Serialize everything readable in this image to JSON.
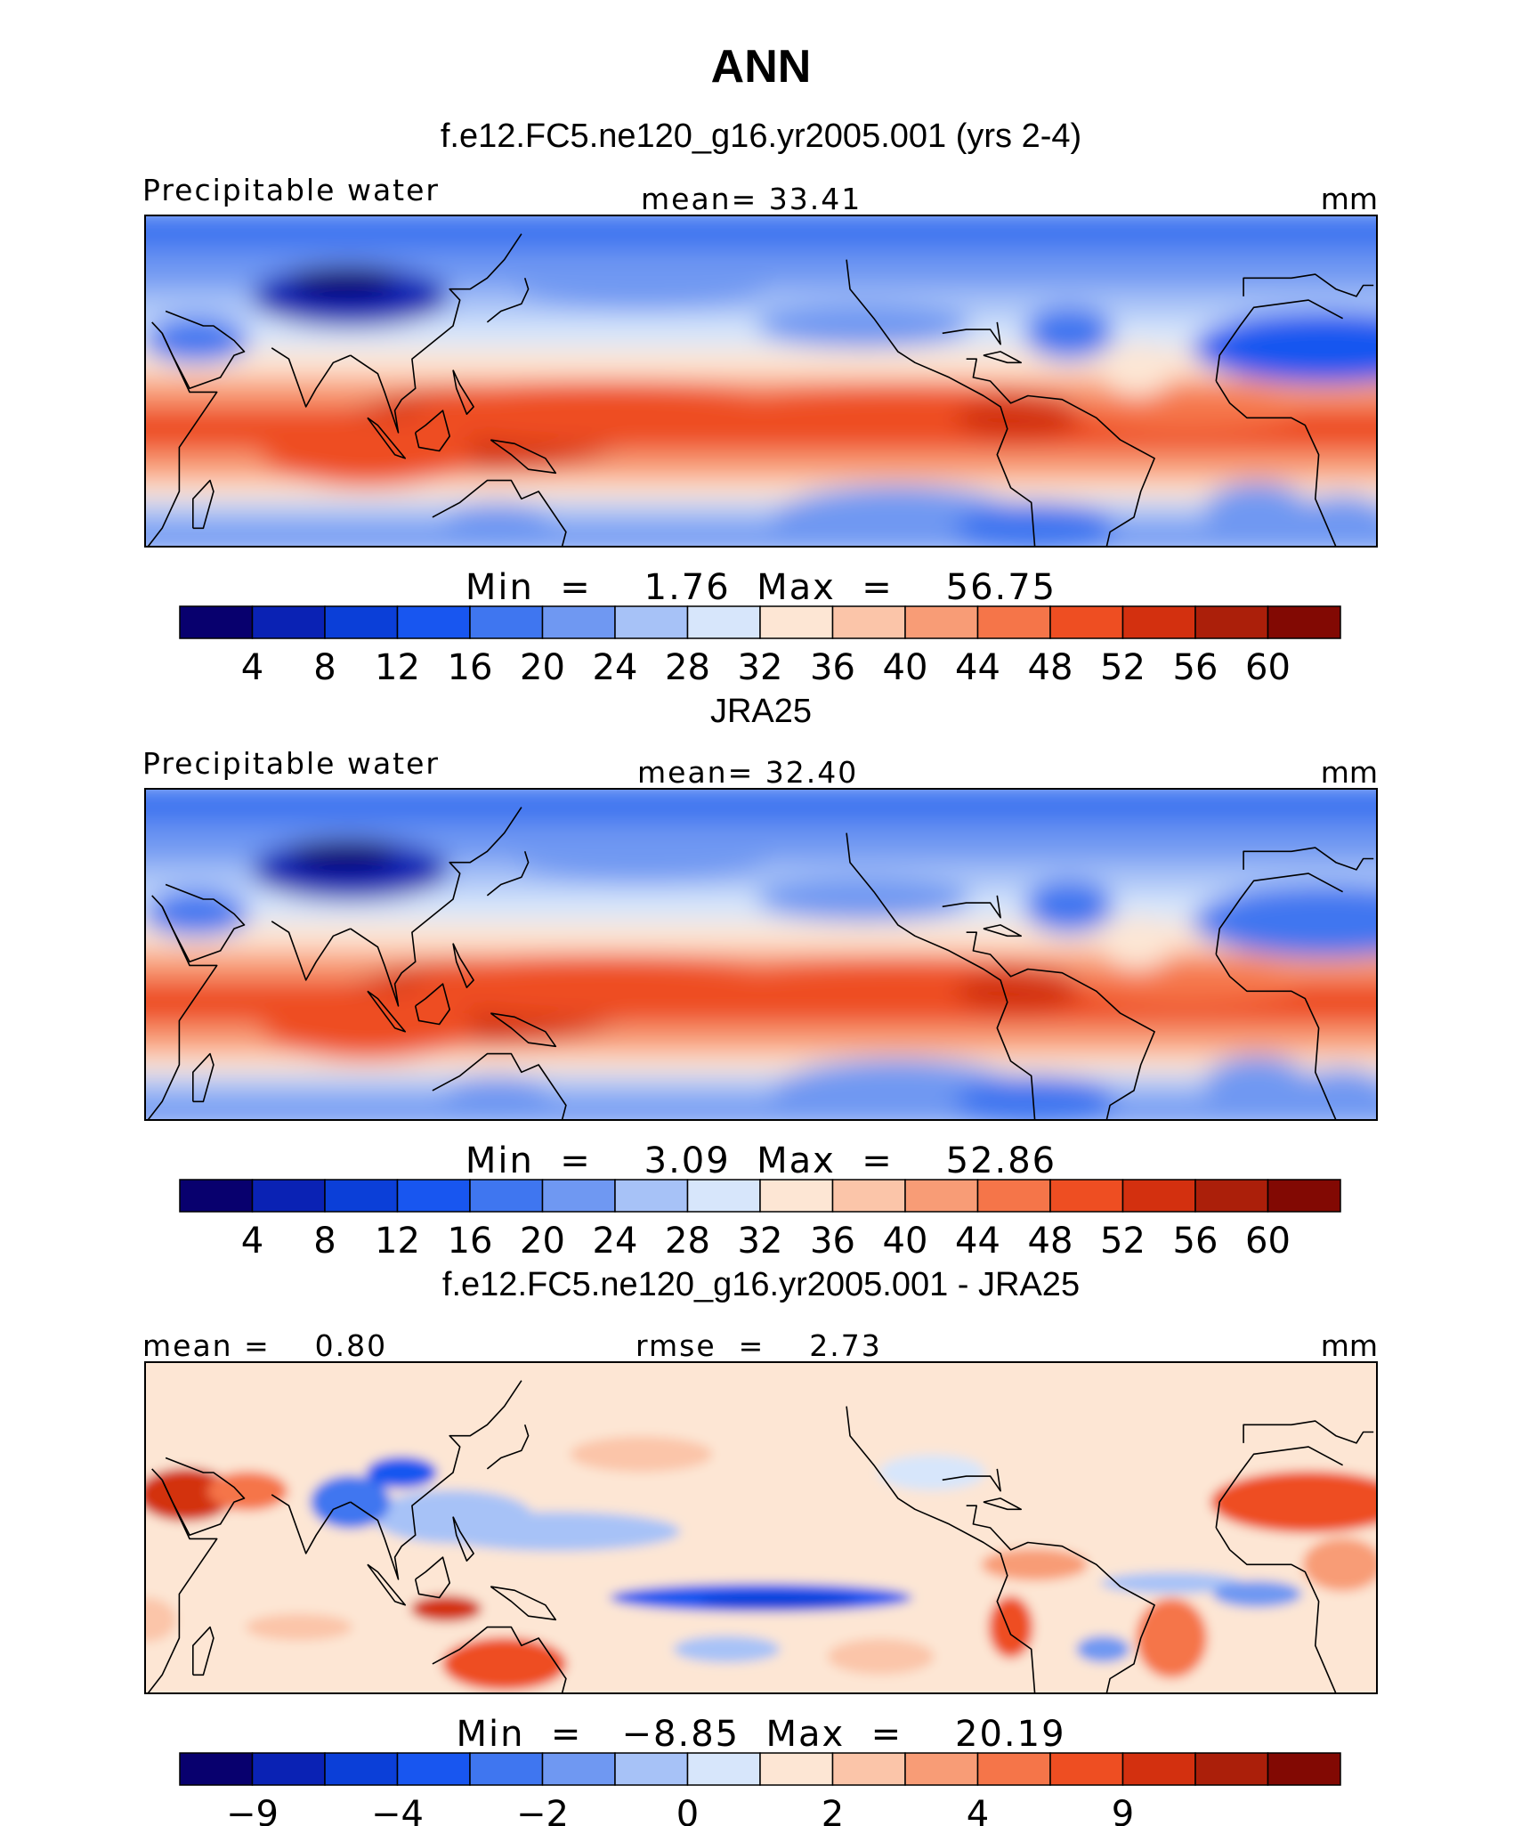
{
  "figure": {
    "title": "ANN"
  },
  "colors": {
    "levels_palette": [
      "#08006e",
      "#0a22b4",
      "#0b3fd8",
      "#1856f0",
      "#3f76f0",
      "#6f98f2",
      "#a7c2f7",
      "#d7e6fb",
      "#fde6d4",
      "#fbc5a9",
      "#f89c76",
      "#f57549",
      "#ee4e22",
      "#d3300f",
      "#ab1f0a",
      "#820903"
    ]
  },
  "chart_data": [
    {
      "type": "heatmap",
      "panel_title": "f.e12.FC5.ne120_g16.yr2005.001 (yrs 2-4)",
      "variable_label": "Precipitable water",
      "stat_left": "",
      "stat_center": "mean=   33.41",
      "units": "mm",
      "minmax": "Min  =    1.76  Max  =    56.75",
      "min": 1.76,
      "max": 56.75,
      "mean": 33.41,
      "colorbar_ticks": [
        "4",
        "8",
        "12",
        "16",
        "20",
        "24",
        "28",
        "32",
        "36",
        "40",
        "44",
        "48",
        "52",
        "56",
        "60"
      ],
      "colorbar_levels": [
        4,
        8,
        12,
        16,
        20,
        24,
        28,
        32,
        36,
        40,
        44,
        48,
        52,
        56,
        60
      ],
      "extent": {
        "lon_min": 30,
        "lon_max": 390,
        "lat_min": -30,
        "lat_max": 60
      }
    },
    {
      "type": "heatmap",
      "panel_title": "JRA25",
      "variable_label": "Precipitable water",
      "stat_left": "",
      "stat_center": "mean=   32.40",
      "units": "mm",
      "minmax": "Min  =    3.09  Max  =    52.86",
      "min": 3.09,
      "max": 52.86,
      "mean": 32.4,
      "colorbar_ticks": [
        "4",
        "8",
        "12",
        "16",
        "20",
        "24",
        "28",
        "32",
        "36",
        "40",
        "44",
        "48",
        "52",
        "56",
        "60"
      ],
      "colorbar_levels": [
        4,
        8,
        12,
        16,
        20,
        24,
        28,
        32,
        36,
        40,
        44,
        48,
        52,
        56,
        60
      ],
      "extent": {
        "lon_min": 30,
        "lon_max": 390,
        "lat_min": -30,
        "lat_max": 60
      }
    },
    {
      "type": "heatmap",
      "panel_title": "f.e12.FC5.ne120_g16.yr2005.001 - JRA25",
      "variable_label": "",
      "stat_left": "mean =    0.80",
      "stat_center": "rmse  =    2.73",
      "units": "mm",
      "minmax": "Min  =   −8.85  Max  =    20.19",
      "min": -8.85,
      "max": 20.19,
      "mean": 0.8,
      "rmse": 2.73,
      "colorbar_ticks": [
        "−9",
        "−4",
        "−2",
        "0",
        "2",
        "4",
        "9"
      ],
      "colorbar_tick_positions": [
        1,
        3,
        5,
        7,
        9,
        11,
        13
      ],
      "extent": {
        "lon_min": 30,
        "lon_max": 390,
        "lat_min": -30,
        "lat_max": 60
      }
    }
  ]
}
